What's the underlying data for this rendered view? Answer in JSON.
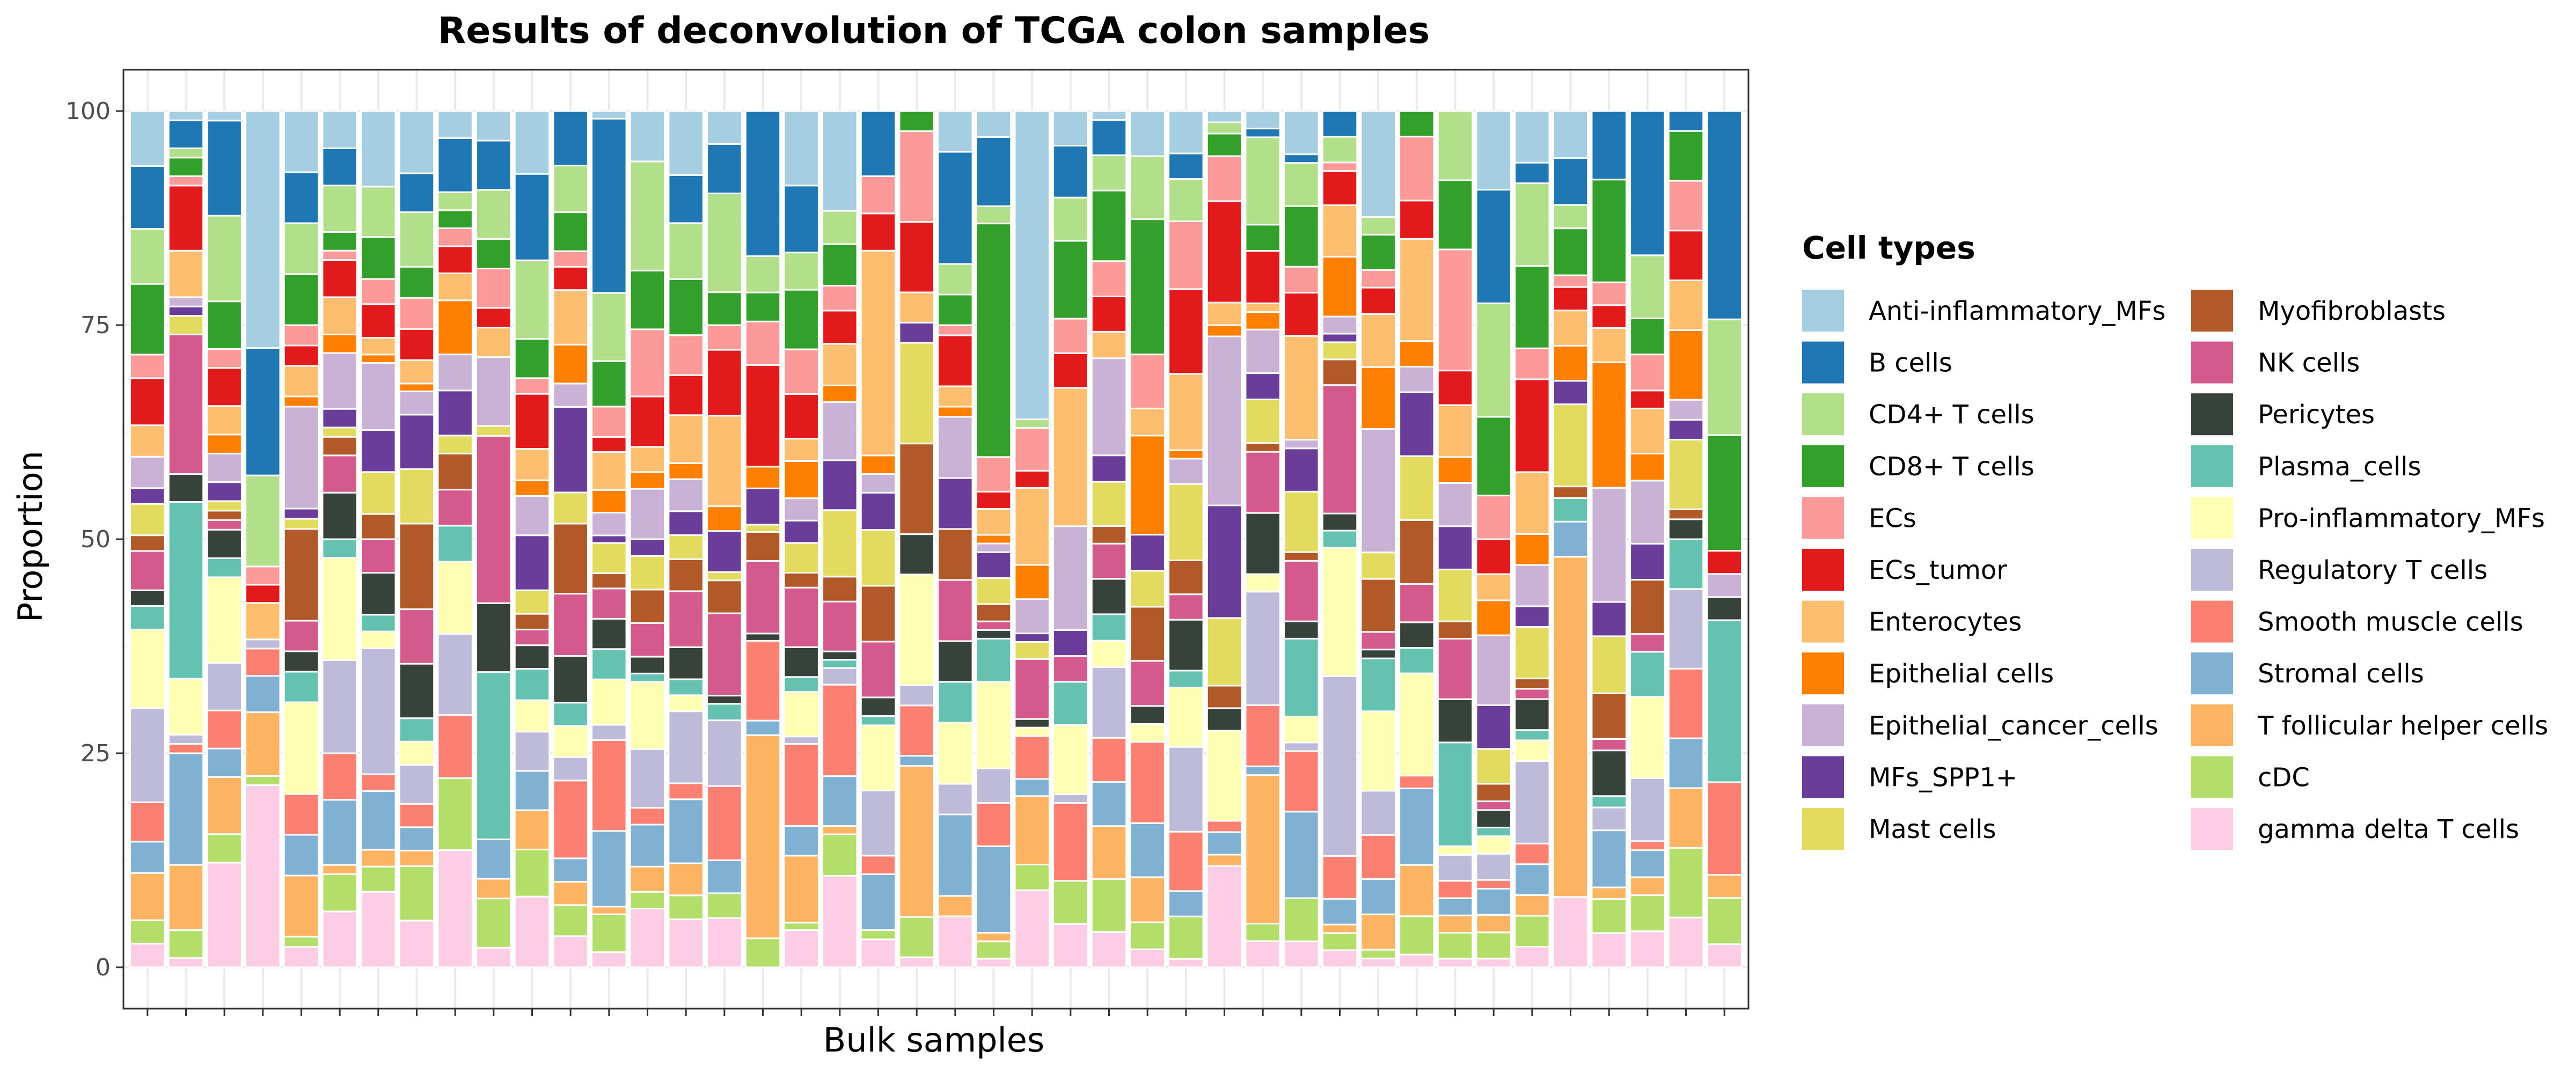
{
  "chart_data": {
    "type": "bar",
    "stacked": true,
    "title": "Results of deconvolution of TCGA colon samples",
    "xlabel": "Bulk samples",
    "ylabel": "Proportion",
    "ylim": [
      0,
      100
    ],
    "yticks": [
      0,
      25,
      50,
      75,
      100
    ],
    "grid": true,
    "legend_title": "Cell types",
    "legend_position": "right",
    "stack_order": [
      "gamma delta T cells",
      "cDC",
      "T follicular helper cells",
      "Stromal cells",
      "Smooth muscle cells",
      "Regulatory T cells",
      "Pro-inflammatory_MFs",
      "Plasma_cells",
      "Pericytes",
      "NK cells",
      "Myofibroblasts",
      "Mast cells",
      "MFs_SPP1+",
      "Epithelial_cancer_cells",
      "Epithelial cells",
      "Enterocytes",
      "ECs_tumor",
      "ECs",
      "CD8+ T cells",
      "CD4+ T cells",
      "B cells",
      "Anti-inflammatory_MFs"
    ],
    "legend_entries": [
      {
        "name": "Anti-inflammatory_MFs",
        "color": "#A6CEE3"
      },
      {
        "name": "B cells",
        "color": "#1F78B4"
      },
      {
        "name": "CD4+ T cells",
        "color": "#B2DF8A"
      },
      {
        "name": "CD8+ T cells",
        "color": "#33A02C"
      },
      {
        "name": "ECs",
        "color": "#FB9A99"
      },
      {
        "name": "ECs_tumor",
        "color": "#E31A1C"
      },
      {
        "name": "Enterocytes",
        "color": "#FDBF6F"
      },
      {
        "name": "Epithelial cells",
        "color": "#FF7F00"
      },
      {
        "name": "Epithelial_cancer_cells",
        "color": "#CAB2D6"
      },
      {
        "name": "MFs_SPP1+",
        "color": "#6A3D9A"
      },
      {
        "name": "Mast cells",
        "color": "#E2DB5F"
      },
      {
        "name": "Myofibroblasts",
        "color": "#B15928"
      },
      {
        "name": "NK cells",
        "color": "#D45A8E"
      },
      {
        "name": "Pericytes",
        "color": "#36423A"
      },
      {
        "name": "Plasma_cells",
        "color": "#66C2B0"
      },
      {
        "name": "Pro-inflammatory_MFs",
        "color": "#FFFFB3"
      },
      {
        "name": "Regulatory T cells",
        "color": "#BEBADA"
      },
      {
        "name": "Smooth muscle cells",
        "color": "#FB8072"
      },
      {
        "name": "Stromal cells",
        "color": "#80B1D3"
      },
      {
        "name": "T follicular helper cells",
        "color": "#FDB462"
      },
      {
        "name": "cDC",
        "color": "#B3DE69"
      },
      {
        "name": "gamma delta T cells",
        "color": "#FCCDE5"
      }
    ],
    "samples": [
      [
        3,
        3,
        6,
        4,
        5,
        12,
        10,
        3,
        2,
        5,
        2,
        4,
        2,
        4,
        0,
        4,
        6,
        3,
        9,
        7,
        8,
        7
      ],
      [
        1,
        3,
        7,
        12,
        1,
        1,
        6,
        19,
        3,
        15,
        0,
        2,
        1,
        1,
        0,
        5,
        7,
        1,
        2,
        1,
        3,
        1
      ],
      [
        11,
        3,
        6,
        3,
        4,
        5,
        9,
        2,
        3,
        1,
        1,
        1,
        2,
        3,
        2,
        3,
        4,
        2,
        5,
        9,
        10,
        1
      ],
      [
        20,
        1,
        7,
        4,
        3,
        1,
        0,
        0,
        0,
        0,
        0,
        0,
        0,
        0,
        0,
        4,
        2,
        2,
        0,
        10,
        14,
        26
      ],
      [
        2,
        1,
        6,
        4,
        4,
        0,
        9,
        3,
        2,
        3,
        9,
        1,
        1,
        10,
        1,
        3,
        2,
        2,
        5,
        5,
        5,
        6
      ],
      [
        6,
        4,
        1,
        7,
        5,
        10,
        11,
        2,
        5,
        4,
        2,
        1,
        2,
        6,
        2,
        4,
        4,
        1,
        2,
        5,
        4,
        4
      ],
      [
        9,
        3,
        2,
        7,
        2,
        15,
        2,
        2,
        5,
        4,
        3,
        5,
        5,
        8,
        1,
        2,
        4,
        3,
        5,
        6,
        0,
        9
      ],
      [
        6,
        7,
        2,
        3,
        3,
        5,
        3,
        3,
        7,
        7,
        11,
        7,
        7,
        3,
        1,
        3,
        4,
        4,
        4,
        7,
        5,
        8
      ],
      [
        13,
        8,
        0,
        0,
        7,
        9,
        8,
        4,
        0,
        4,
        4,
        2,
        5,
        4,
        6,
        3,
        3,
        2,
        2,
        2,
        6,
        3
      ],
      [
        2,
        5,
        2,
        4,
        0,
        0,
        0,
        17,
        7,
        17,
        0,
        1,
        0,
        7,
        0,
        3,
        2,
        4,
        3,
        5,
        5,
        3
      ],
      [
        9,
        6,
        5,
        5,
        0,
        5,
        4,
        4,
        3,
        2,
        2,
        3,
        7,
        5,
        2,
        4,
        7,
        2,
        5,
        10,
        11,
        8
      ],
      [
        4,
        4,
        3,
        3,
        10,
        3,
        4,
        3,
        6,
        8,
        9,
        4,
        11,
        3,
        5,
        7,
        3,
        2,
        5,
        6,
        7,
        0
      ],
      [
        2,
        5,
        1,
        10,
        12,
        2,
        6,
        4,
        4,
        4,
        2,
        4,
        1,
        3,
        3,
        5,
        2,
        4,
        6,
        9,
        23,
        1
      ],
      [
        7,
        2,
        3,
        5,
        2,
        7,
        8,
        1,
        2,
        4,
        4,
        4,
        2,
        6,
        2,
        3,
        6,
        8,
        7,
        13,
        0,
        6
      ],
      [
        6,
        3,
        4,
        8,
        2,
        9,
        2,
        2,
        4,
        7,
        4,
        3,
        3,
        4,
        2,
        6,
        5,
        5,
        7,
        7,
        6,
        8
      ],
      [
        6,
        3,
        0,
        4,
        9,
        8,
        0,
        2,
        1,
        10,
        4,
        1,
        5,
        0,
        3,
        11,
        8,
        3,
        4,
        12,
        6,
        4
      ],
      [
        0,
        4,
        28,
        2,
        11,
        0,
        0,
        0,
        1,
        10,
        4,
        1,
        5,
        0,
        3,
        0,
        14,
        6,
        4,
        5,
        20,
        0
      ],
      [
        5,
        1,
        9,
        4,
        11,
        1,
        6,
        2,
        4,
        8,
        2,
        4,
        3,
        3,
        5,
        3,
        6,
        6,
        8,
        5,
        9,
        10
      ],
      [
        11,
        5,
        1,
        6,
        11,
        2,
        0,
        1,
        1,
        6,
        3,
        8,
        6,
        7,
        2,
        5,
        4,
        3,
        5,
        4,
        0,
        12
      ],
      [
        3,
        1,
        0,
        6,
        2,
        7,
        7,
        1,
        2,
        6,
        6,
        6,
        4,
        2,
        2,
        22,
        4,
        4,
        0,
        0,
        7,
        0
      ],
      [
        1,
        4,
        15,
        1,
        5,
        2,
        11,
        0,
        4,
        0,
        9,
        10,
        2,
        0,
        0,
        3,
        7,
        9,
        2,
        0,
        0,
        0
      ],
      [
        5,
        0,
        2,
        8,
        0,
        3,
        6,
        4,
        4,
        6,
        5,
        0,
        5,
        6,
        1,
        2,
        5,
        1,
        3,
        3,
        11,
        4
      ],
      [
        1,
        2,
        1,
        10,
        5,
        4,
        10,
        5,
        1,
        1,
        2,
        3,
        3,
        1,
        1,
        3,
        2,
        4,
        27,
        2,
        8,
        3
      ],
      [
        9,
        3,
        8,
        2,
        5,
        0,
        1,
        0,
        1,
        7,
        0,
        2,
        1,
        4,
        4,
        9,
        2,
        5,
        0,
        1,
        0,
        36
      ],
      [
        5,
        5,
        0,
        0,
        9,
        1,
        8,
        5,
        0,
        3,
        0,
        0,
        3,
        12,
        0,
        16,
        4,
        4,
        9,
        5,
        6,
        4
      ],
      [
        4,
        6,
        6,
        5,
        5,
        8,
        3,
        3,
        4,
        4,
        2,
        5,
        3,
        11,
        0,
        3,
        4,
        4,
        8,
        4,
        4,
        1
      ],
      [
        2,
        3,
        5,
        6,
        9,
        0,
        2,
        0,
        2,
        5,
        6,
        4,
        4,
        0,
        11,
        3,
        0,
        6,
        15,
        7,
        0,
        5
      ],
      [
        1,
        5,
        0,
        3,
        7,
        10,
        7,
        2,
        6,
        3,
        4,
        9,
        0,
        3,
        1,
        9,
        10,
        8,
        0,
        5,
        3,
        5
      ],
      [
        9,
        0,
        1,
        2,
        1,
        0,
        8,
        0,
        2,
        0,
        2,
        6,
        10,
        15,
        1,
        2,
        9,
        4,
        2,
        1,
        0,
        1
      ],
      [
        3,
        2,
        17,
        1,
        7,
        13,
        2,
        0,
        7,
        7,
        1,
        5,
        3,
        5,
        2,
        1,
        6,
        0,
        3,
        10,
        1,
        2
      ],
      [
        3,
        5,
        0,
        10,
        7,
        1,
        3,
        9,
        2,
        7,
        1,
        7,
        5,
        1,
        0,
        12,
        5,
        3,
        7,
        5,
        1,
        5
      ],
      [
        2,
        2,
        1,
        3,
        5,
        21,
        15,
        2,
        2,
        15,
        3,
        2,
        1,
        2,
        7,
        6,
        4,
        1,
        0,
        3,
        3,
        0
      ],
      [
        1,
        1,
        4,
        4,
        5,
        5,
        9,
        6,
        1,
        2,
        6,
        3,
        0,
        14,
        7,
        6,
        3,
        2,
        4,
        2,
        0,
        12
      ],
      [
        1,
        3,
        4,
        6,
        1,
        0,
        8,
        2,
        2,
        3,
        5,
        5,
        5,
        2,
        2,
        8,
        3,
        5,
        2,
        0,
        0,
        0
      ],
      [
        1,
        3,
        2,
        2,
        2,
        3,
        1,
        12,
        5,
        7,
        2,
        6,
        5,
        5,
        3,
        6,
        4,
        14,
        8,
        8,
        0,
        0
      ],
      [
        1,
        3,
        2,
        3,
        1,
        3,
        2,
        1,
        2,
        1,
        2,
        4,
        5,
        8,
        4,
        3,
        4,
        5,
        9,
        13,
        13,
        9
      ],
      [
        2,
        3,
        2,
        3,
        2,
        8,
        2,
        1,
        3,
        1,
        1,
        5,
        2,
        4,
        3,
        6,
        9,
        3,
        8,
        8,
        2,
        5
      ],
      [
        6,
        0,
        29,
        3,
        0,
        0,
        0,
        2,
        0,
        0,
        1,
        7,
        2,
        0,
        3,
        3,
        2,
        1,
        4,
        2,
        4,
        4
      ],
      [
        3,
        3,
        1,
        5,
        0,
        2,
        0,
        1,
        4,
        1,
        4,
        5,
        3,
        10,
        11,
        3,
        2,
        2,
        9,
        0,
        6,
        0
      ],
      [
        4,
        4,
        2,
        3,
        1,
        7,
        9,
        5,
        0,
        2,
        6,
        0,
        4,
        7,
        3,
        5,
        2,
        4,
        4,
        7,
        16,
        0
      ],
      [
        5,
        7,
        6,
        5,
        7,
        8,
        0,
        5,
        2,
        0,
        1,
        7,
        2,
        2,
        7,
        5,
        5,
        5,
        5,
        0,
        2,
        0
      ],
      [
        1,
        2,
        1,
        0,
        4,
        0,
        0,
        7,
        1,
        0,
        0,
        0,
        0,
        1,
        0,
        0,
        1,
        0,
        5,
        5,
        9,
        0
      ]
    ]
  }
}
